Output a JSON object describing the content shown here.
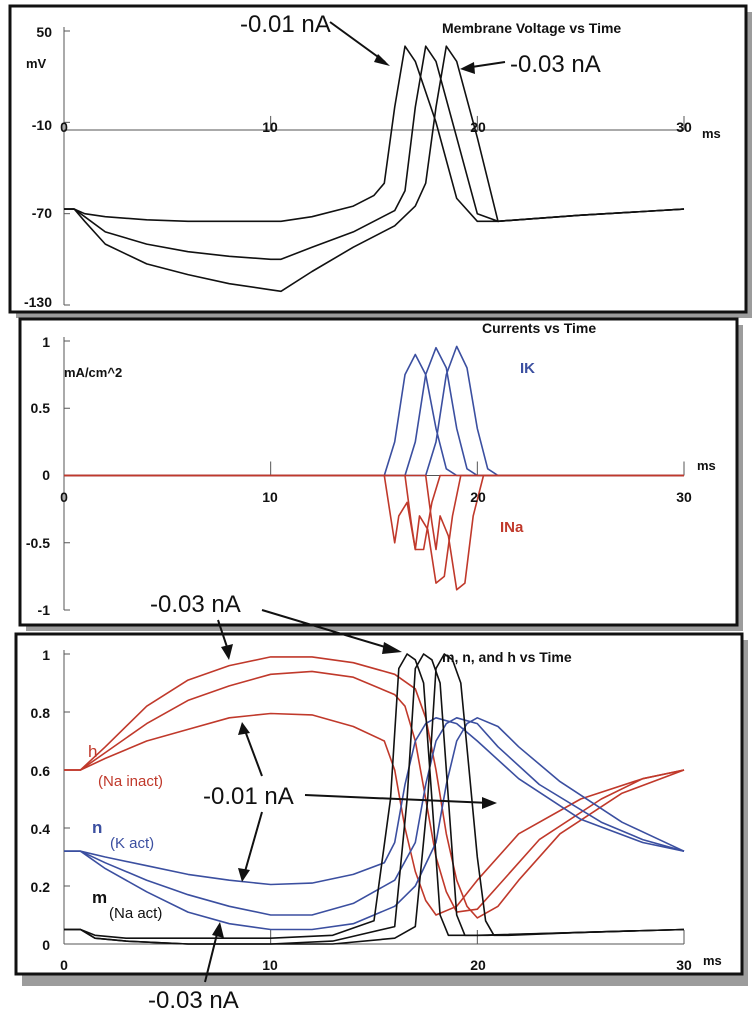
{
  "colors": {
    "black": "#111111",
    "blue": "#3b4fa0",
    "red": "#c0392b",
    "frame": "#111111"
  },
  "chart_data": [
    {
      "type": "line",
      "title": "Membrane Voltage vs Time",
      "xunit": "ms",
      "yunit": "mV",
      "xlim": [
        0,
        30
      ],
      "ylim": [
        -130,
        50
      ],
      "xticks": [
        "0",
        "10",
        "20",
        "30"
      ],
      "yticks": [
        "50",
        "-10",
        "-70",
        "-130"
      ],
      "annotations": [
        "-0.01 nA",
        "-0.03 nA"
      ],
      "series": [
        {
          "color": "#111111",
          "x": [
            0,
            0.5,
            1,
            2,
            4,
            6,
            8,
            10,
            10.5,
            12,
            14,
            15,
            15.5,
            16,
            16.5,
            17,
            18,
            19,
            20,
            21,
            25,
            30
          ],
          "y": [
            -67,
            -67,
            -70,
            -72,
            -74,
            -75,
            -75,
            -75,
            -75,
            -72,
            -65,
            -58,
            -50,
            0,
            40,
            30,
            -10,
            -60,
            -75,
            -75,
            -71,
            -67
          ]
        },
        {
          "color": "#111111",
          "x": [
            0,
            0.5,
            1,
            2,
            4,
            6,
            8,
            10,
            10.5,
            12,
            14,
            16,
            16.5,
            17,
            17.5,
            18,
            19,
            20,
            21,
            25,
            30
          ],
          "y": [
            -67,
            -67,
            -72,
            -82,
            -90,
            -95,
            -98,
            -100,
            -100,
            -92,
            -82,
            -68,
            -55,
            0,
            40,
            30,
            -20,
            -70,
            -75,
            -71,
            -67
          ]
        },
        {
          "color": "#111111",
          "x": [
            0,
            0.5,
            1,
            2,
            4,
            6,
            8,
            10,
            10.5,
            12,
            14,
            16,
            17,
            17.5,
            18,
            18.5,
            19,
            20,
            21,
            25,
            30
          ],
          "y": [
            -67,
            -67,
            -75,
            -90,
            -103,
            -110,
            -116,
            -120,
            -121,
            -108,
            -92,
            -78,
            -65,
            -50,
            0,
            40,
            30,
            -20,
            -75,
            -71,
            -67
          ]
        }
      ]
    },
    {
      "type": "line",
      "title": "Currents vs Time",
      "xunit": "ms",
      "yunit": "mA/cm^2",
      "xlim": [
        0,
        30
      ],
      "ylim": [
        -1,
        1
      ],
      "xticks": [
        "0",
        "10",
        "20",
        "30"
      ],
      "yticks": [
        "1",
        "0.5",
        "0",
        "-0.5",
        "-1"
      ],
      "series_labels": [
        "IK",
        "INa"
      ],
      "series": [
        {
          "name": "IK",
          "color": "#3b4fa0",
          "x": [
            0,
            15.5,
            16,
            16.5,
            17,
            17.5,
            18,
            18.5,
            19,
            30
          ],
          "y": [
            0,
            0,
            0.25,
            0.75,
            0.9,
            0.75,
            0.35,
            0.05,
            0,
            0
          ]
        },
        {
          "name": "IK",
          "color": "#3b4fa0",
          "x": [
            0,
            16.5,
            17,
            17.5,
            18,
            18.5,
            19,
            19.5,
            20,
            30
          ],
          "y": [
            0,
            0,
            0.25,
            0.75,
            0.95,
            0.8,
            0.35,
            0.05,
            0,
            0
          ]
        },
        {
          "name": "IK",
          "color": "#3b4fa0",
          "x": [
            0,
            17.5,
            18,
            18.5,
            19,
            19.5,
            20,
            20.5,
            21,
            30
          ],
          "y": [
            0,
            0,
            0.25,
            0.75,
            0.96,
            0.8,
            0.35,
            0.05,
            0,
            0
          ]
        },
        {
          "name": "INa",
          "color": "#c0392b",
          "x": [
            0,
            15.5,
            15.8,
            16,
            16.2,
            16.6,
            17,
            17.4,
            17.8,
            18.2,
            30
          ],
          "y": [
            0,
            0,
            -0.3,
            -0.5,
            -0.3,
            -0.2,
            -0.55,
            -0.55,
            -0.2,
            0,
            0
          ]
        },
        {
          "name": "INa",
          "color": "#c0392b",
          "x": [
            0,
            16.5,
            16.8,
            17,
            17.2,
            17.6,
            18,
            18.4,
            18.8,
            19.2,
            30
          ],
          "y": [
            0,
            0,
            -0.35,
            -0.55,
            -0.3,
            -0.4,
            -0.8,
            -0.75,
            -0.3,
            0,
            0
          ]
        },
        {
          "name": "INa",
          "color": "#c0392b",
          "x": [
            0,
            17.5,
            17.8,
            18,
            18.2,
            18.6,
            19,
            19.4,
            19.8,
            20.3,
            30
          ],
          "y": [
            0,
            0,
            -0.35,
            -0.55,
            -0.3,
            -0.45,
            -0.85,
            -0.8,
            -0.3,
            0,
            0
          ]
        }
      ]
    },
    {
      "type": "line",
      "title": "m, n, and h vs Time",
      "xunit": "ms",
      "xlim": [
        0,
        30
      ],
      "ylim": [
        0,
        1
      ],
      "xticks": [
        "0",
        "10",
        "20",
        "30"
      ],
      "yticks": [
        "1",
        "0.8",
        "0.6",
        "0.4",
        "0.2",
        "0"
      ],
      "labels": {
        "h": "h",
        "h_sub": "(Na inact)",
        "n": "n",
        "n_sub": "(K act)",
        "m": "m",
        "m_sub": "(Na act)"
      },
      "annotations": [
        "-0.03 nA",
        "-0.01 nA",
        "-0.03 nA"
      ],
      "series": [
        {
          "name": "h",
          "color": "#c0392b",
          "x": [
            0,
            0.8,
            2,
            4,
            6,
            8,
            10,
            12,
            14,
            15.5,
            16,
            16.5,
            17,
            17.5,
            18,
            19,
            20,
            22,
            25,
            28,
            30
          ],
          "y": [
            0.6,
            0.6,
            0.64,
            0.7,
            0.74,
            0.78,
            0.795,
            0.79,
            0.75,
            0.7,
            0.6,
            0.4,
            0.25,
            0.15,
            0.1,
            0.13,
            0.22,
            0.38,
            0.5,
            0.57,
            0.6
          ]
        },
        {
          "name": "h",
          "color": "#c0392b",
          "x": [
            0,
            0.8,
            2,
            4,
            6,
            8,
            10,
            12,
            14,
            16,
            16.5,
            17,
            17.5,
            18,
            18.5,
            19,
            20,
            21,
            23,
            26,
            28,
            30
          ],
          "y": [
            0.6,
            0.6,
            0.66,
            0.76,
            0.84,
            0.89,
            0.93,
            0.94,
            0.92,
            0.86,
            0.82,
            0.7,
            0.5,
            0.3,
            0.18,
            0.11,
            0.12,
            0.2,
            0.36,
            0.5,
            0.57,
            0.6
          ]
        },
        {
          "name": "h",
          "color": "#c0392b",
          "x": [
            0,
            0.8,
            2,
            4,
            6,
            8,
            10,
            12,
            14,
            16,
            17,
            17.5,
            18,
            18.5,
            19,
            19.5,
            20,
            21,
            22,
            24,
            27,
            30
          ],
          "y": [
            0.6,
            0.6,
            0.68,
            0.82,
            0.91,
            0.96,
            0.99,
            0.99,
            0.97,
            0.93,
            0.88,
            0.78,
            0.6,
            0.38,
            0.22,
            0.13,
            0.09,
            0.13,
            0.22,
            0.38,
            0.52,
            0.6
          ]
        },
        {
          "name": "n",
          "color": "#3b4fa0",
          "x": [
            0,
            0.8,
            2,
            4,
            6,
            8,
            10,
            12,
            14,
            15.5,
            16,
            16.5,
            17,
            17.5,
            18,
            19,
            20,
            22,
            25,
            28,
            30
          ],
          "y": [
            0.32,
            0.32,
            0.3,
            0.27,
            0.24,
            0.22,
            0.205,
            0.21,
            0.24,
            0.28,
            0.35,
            0.55,
            0.7,
            0.76,
            0.78,
            0.76,
            0.7,
            0.57,
            0.43,
            0.35,
            0.32
          ]
        },
        {
          "name": "n",
          "color": "#3b4fa0",
          "x": [
            0,
            0.8,
            2,
            4,
            6,
            8,
            10,
            12,
            14,
            16,
            17,
            17.5,
            18,
            18.5,
            19,
            20,
            21,
            23,
            26,
            28,
            30
          ],
          "y": [
            0.32,
            0.32,
            0.28,
            0.22,
            0.17,
            0.13,
            0.1,
            0.1,
            0.14,
            0.22,
            0.35,
            0.55,
            0.7,
            0.76,
            0.78,
            0.76,
            0.68,
            0.55,
            0.42,
            0.36,
            0.32
          ]
        },
        {
          "name": "n",
          "color": "#3b4fa0",
          "x": [
            0,
            0.8,
            2,
            4,
            6,
            8,
            10,
            12,
            14,
            16,
            17,
            18,
            18.5,
            19,
            19.5,
            20,
            21,
            22,
            24,
            27,
            30
          ],
          "y": [
            0.32,
            0.32,
            0.26,
            0.18,
            0.11,
            0.07,
            0.05,
            0.05,
            0.07,
            0.13,
            0.2,
            0.35,
            0.55,
            0.7,
            0.76,
            0.78,
            0.75,
            0.68,
            0.56,
            0.42,
            0.32
          ]
        },
        {
          "name": "m",
          "color": "#111111",
          "x": [
            0,
            0.8,
            1.5,
            3,
            6,
            10,
            13,
            15,
            15.8,
            16.2,
            16.6,
            17,
            17.4,
            17.8,
            18.2,
            18.6,
            19,
            20,
            25,
            30
          ],
          "y": [
            0.05,
            0.05,
            0.03,
            0.02,
            0.02,
            0.02,
            0.03,
            0.08,
            0.5,
            0.95,
            1.0,
            0.98,
            0.9,
            0.5,
            0.1,
            0.03,
            0.03,
            0.03,
            0.04,
            0.05
          ]
        },
        {
          "name": "m",
          "color": "#111111",
          "x": [
            0,
            0.8,
            1.5,
            3,
            6,
            10,
            13,
            16,
            16.6,
            17,
            17.4,
            17.8,
            18.2,
            18.6,
            19,
            19.4,
            19.8,
            20.5,
            25,
            30
          ],
          "y": [
            0.05,
            0.05,
            0.02,
            0.01,
            0.0,
            0.0,
            0.01,
            0.06,
            0.5,
            0.95,
            1.0,
            0.98,
            0.9,
            0.5,
            0.1,
            0.03,
            0.03,
            0.03,
            0.04,
            0.05
          ]
        },
        {
          "name": "m",
          "color": "#111111",
          "x": [
            0,
            0.8,
            1.5,
            3,
            6,
            10,
            13,
            16,
            17,
            17.6,
            18,
            18.4,
            18.8,
            19.2,
            19.6,
            20,
            20.4,
            20.8,
            21.5,
            25,
            30
          ],
          "y": [
            0.05,
            0.05,
            0.02,
            0.01,
            0.0,
            0.0,
            0.0,
            0.02,
            0.06,
            0.5,
            0.95,
            1.0,
            0.98,
            0.9,
            0.6,
            0.3,
            0.08,
            0.03,
            0.03,
            0.04,
            0.05
          ]
        }
      ]
    }
  ]
}
